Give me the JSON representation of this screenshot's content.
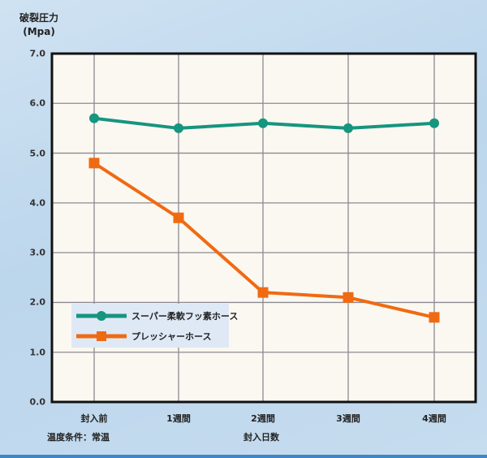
{
  "chart_data": {
    "type": "line",
    "title": "",
    "ylabel_line1": "破裂圧力",
    "ylabel_line2": "(Mpa)",
    "xlabel": "封入日数",
    "categories": [
      "封入前",
      "1週間",
      "2週間",
      "3週間",
      "4週間"
    ],
    "yticks": [
      "7.0",
      "6.0",
      "5.0",
      "4.0",
      "3.0",
      "2.0",
      "1.0",
      "0.0"
    ],
    "ylim": [
      0,
      7
    ],
    "grid": true,
    "legend_position": "lower-left inside plot",
    "series": [
      {
        "name": "スーパー柔軟フッ素ホース",
        "color": "#16957f",
        "marker": "circle",
        "values": [
          5.7,
          5.5,
          5.6,
          5.5,
          5.6
        ]
      },
      {
        "name": "プレッシャーホース",
        "color": "#f06a12",
        "marker": "square",
        "values": [
          4.8,
          3.7,
          2.2,
          2.1,
          1.7
        ]
      }
    ],
    "annotations": [
      "温度条件：常温"
    ]
  },
  "colors": {
    "plot_bg": "#fbf8f1",
    "grid": "#8a8a92",
    "frame": "#111111",
    "legend_bg": "#dfe9f6"
  }
}
